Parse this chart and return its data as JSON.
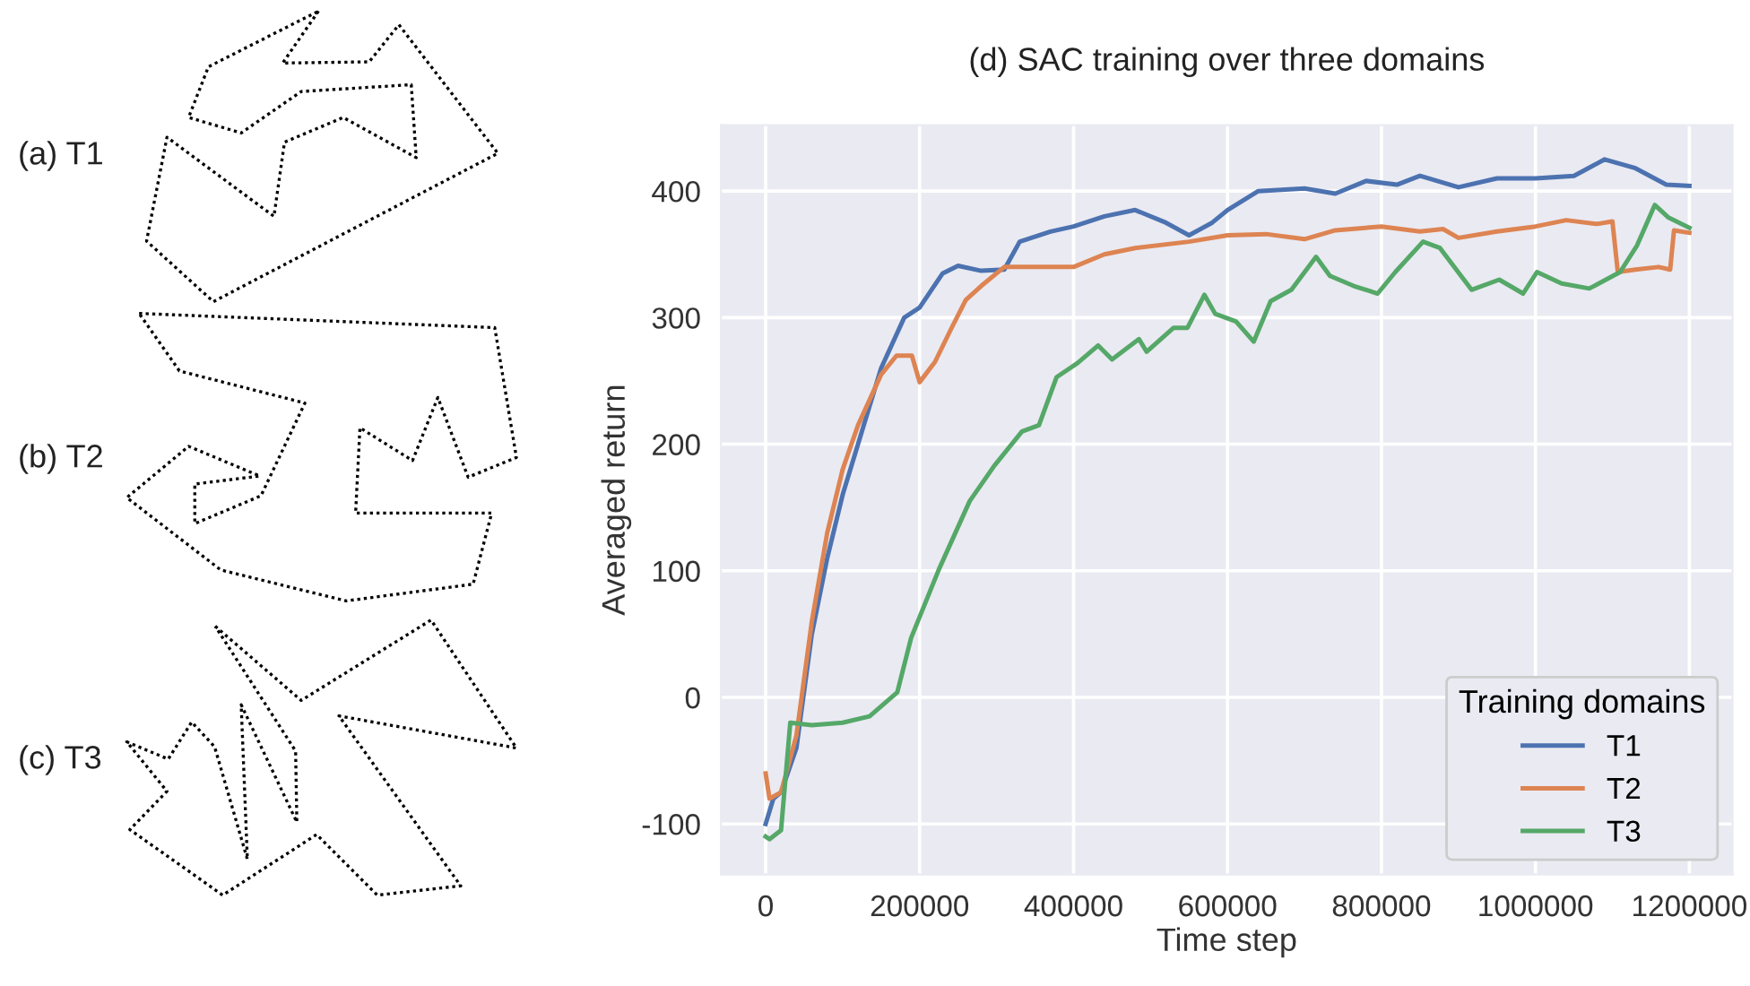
{
  "chart_data": {
    "type": "line",
    "title": "(d) SAC training over three domains",
    "xlabel": "Time step",
    "ylabel": "Averaged return",
    "legend_title": "Training domains",
    "annotations": [
      "(a) T1",
      "(b) T2",
      "(c) T3"
    ],
    "xlim": [
      -58000,
      1256000
    ],
    "ylim": [
      -140,
      452
    ],
    "xticks": [
      0,
      200000,
      400000,
      600000,
      800000,
      1000000,
      1200000
    ],
    "yticks": [
      -100,
      0,
      100,
      200,
      300,
      400
    ],
    "grid": true,
    "legend": "bottom right",
    "line_style": "solid",
    "marker": "none",
    "series": [
      {
        "name": "T1",
        "color": "#4c72b0",
        "x": [
          0,
          10000,
          20000,
          40000,
          60000,
          80000,
          100000,
          120000,
          150000,
          180000,
          200000,
          230000,
          250000,
          280000,
          310000,
          330000,
          370000,
          400000,
          440000,
          480000,
          520000,
          550000,
          580000,
          600000,
          640000,
          700000,
          740000,
          780000,
          820000,
          850000,
          900000,
          950000,
          1000000,
          1050000,
          1090000,
          1130000,
          1170000,
          1200000
        ],
        "values": [
          -100,
          -80,
          -75,
          -40,
          50,
          110,
          160,
          200,
          260,
          300,
          308,
          335,
          341,
          337,
          338,
          360,
          368,
          372,
          380,
          385,
          375,
          365,
          375,
          385,
          400,
          402,
          398,
          408,
          405,
          412,
          403,
          410,
          410,
          412,
          425,
          418,
          405,
          404
        ]
      },
      {
        "name": "T2",
        "color": "#dd8452",
        "x": [
          0,
          5000,
          20000,
          40000,
          60000,
          80000,
          100000,
          120000,
          150000,
          170000,
          190000,
          200000,
          220000,
          240000,
          260000,
          280000,
          310000,
          350000,
          400000,
          440000,
          480000,
          550000,
          600000,
          650000,
          700000,
          740000,
          800000,
          850000,
          880000,
          900000,
          950000,
          1000000,
          1040000,
          1080000,
          1100000,
          1107000,
          1130000,
          1160000,
          1175000,
          1180000,
          1200000
        ],
        "values": [
          -60,
          -80,
          -75,
          -30,
          60,
          130,
          180,
          215,
          255,
          270,
          270,
          249,
          265,
          290,
          314,
          325,
          340,
          340,
          340,
          350,
          355,
          360,
          365,
          366,
          362,
          369,
          372,
          368,
          370,
          363,
          368,
          372,
          377,
          374,
          376,
          336,
          338,
          340,
          338,
          369,
          367
        ]
      },
      {
        "name": "T3",
        "color": "#55a868",
        "x": [
          0,
          5000,
          20000,
          32000,
          60000,
          100000,
          135000,
          171000,
          189000,
          225000,
          265000,
          297000,
          333000,
          355000,
          378000,
          405000,
          432000,
          450000,
          485000,
          495000,
          530000,
          548000,
          570000,
          584000,
          611000,
          634000,
          656000,
          683000,
          715000,
          733000,
          764000,
          795000,
          818000,
          854000,
          876000,
          917000,
          953000,
          984000,
          1002000,
          1034000,
          1070000,
          1110000,
          1132000,
          1155000,
          1173000,
          1200000
        ],
        "values": [
          -110,
          -112,
          -105,
          -20,
          -22,
          -20,
          -15,
          4,
          47,
          101,
          155,
          183,
          210,
          215,
          253,
          264,
          278,
          267,
          283,
          273,
          292,
          292,
          318,
          303,
          297,
          281,
          313,
          322,
          348,
          333,
          325,
          319,
          336,
          360,
          355,
          322,
          330,
          319,
          336,
          327,
          323,
          336,
          357,
          389,
          379,
          371
        ]
      }
    ]
  }
}
